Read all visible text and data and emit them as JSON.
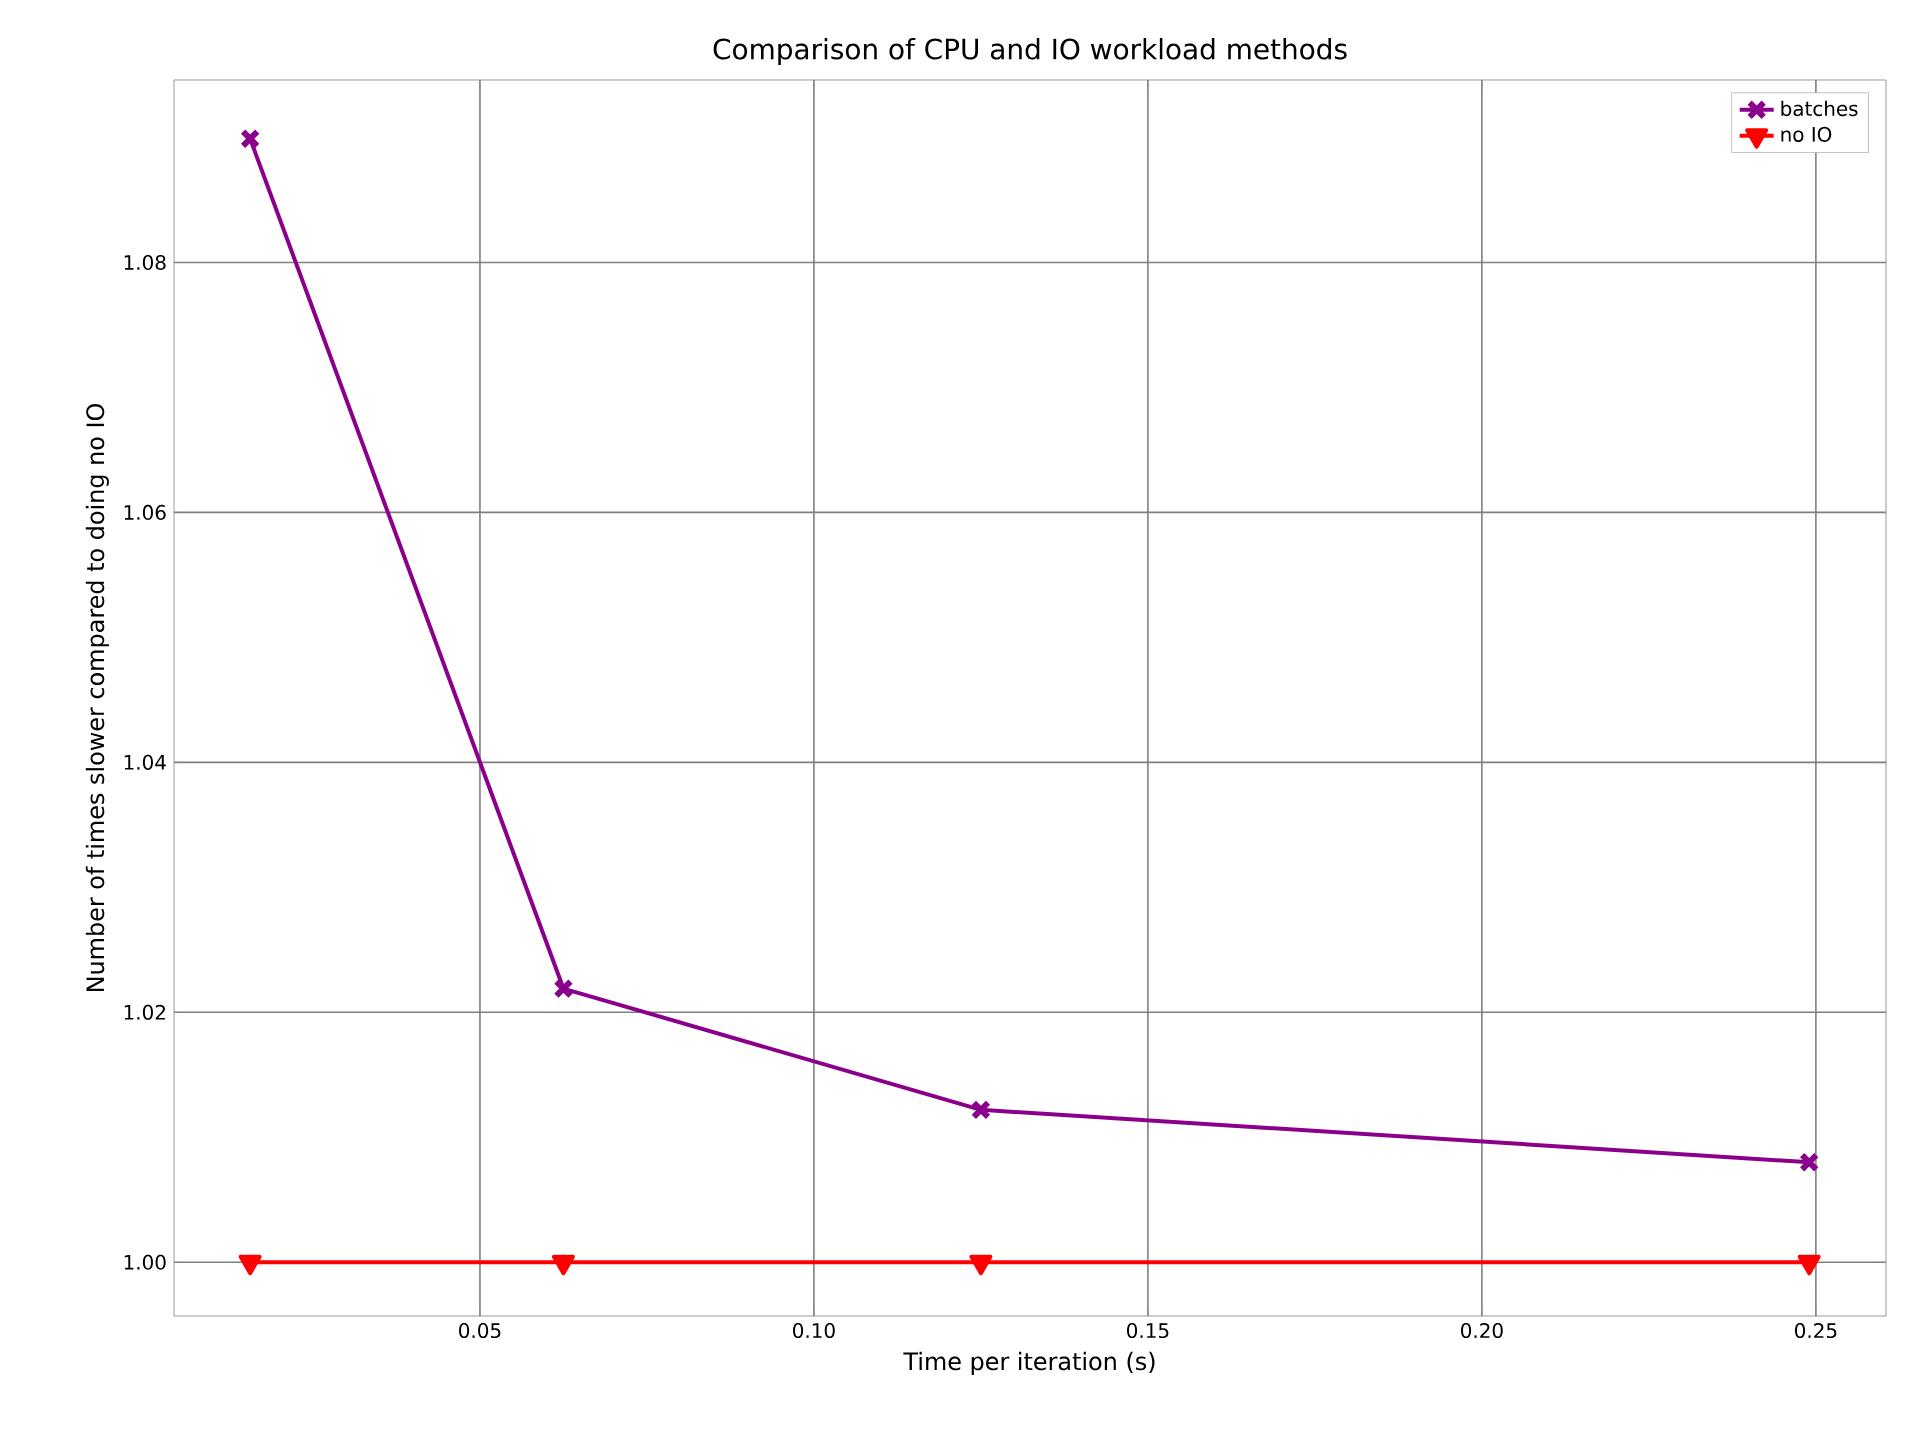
{
  "chart_data": {
    "type": "line",
    "title": "Comparison of CPU and IO workload methods",
    "xlabel": "Time per iteration (s)",
    "ylabel": "Number of times slower compared to doing no IO",
    "x": [
      0.0156,
      0.0625,
      0.125,
      0.249
    ],
    "series": [
      {
        "name": "batches",
        "color": "#8b008b",
        "marker": "cross",
        "values": [
          1.0899,
          1.0219,
          1.0122,
          1.008
        ]
      },
      {
        "name": "no IO",
        "color": "#ff0000",
        "marker": "triangle",
        "values": [
          1.0,
          1.0,
          1.0,
          1.0
        ]
      }
    ],
    "xlim": [
      0.0042,
      0.2605
    ],
    "ylim": [
      0.9957,
      1.0946
    ],
    "xticks": [
      {
        "value": 0.05,
        "label": "0.05"
      },
      {
        "value": 0.1,
        "label": "0.10"
      },
      {
        "value": 0.15,
        "label": "0.15"
      },
      {
        "value": 0.2,
        "label": "0.20"
      },
      {
        "value": 0.25,
        "label": "0.25"
      }
    ],
    "yticks": [
      {
        "value": 1.0,
        "label": "1.00"
      },
      {
        "value": 1.02,
        "label": "1.02"
      },
      {
        "value": 1.04,
        "label": "1.04"
      },
      {
        "value": 1.06,
        "label": "1.06"
      },
      {
        "value": 1.08,
        "label": "1.08"
      }
    ],
    "grid": true,
    "legend": "top right",
    "line_style": "solid"
  }
}
